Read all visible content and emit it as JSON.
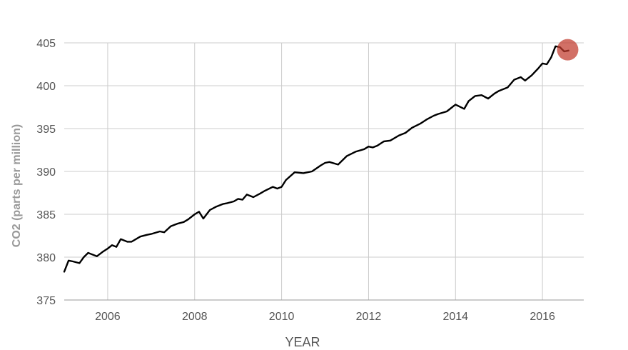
{
  "chart_data": {
    "type": "line",
    "title": "",
    "xlabel": "YEAR",
    "ylabel": "CO2 (parts per million)",
    "xlim": [
      2005.0,
      2016.95
    ],
    "ylim": [
      375,
      405
    ],
    "x_ticks": [
      2006,
      2008,
      2010,
      2012,
      2014,
      2016
    ],
    "y_ticks": [
      375,
      380,
      385,
      390,
      395,
      400,
      405
    ],
    "grid": true,
    "legend": "none",
    "colors": {
      "line": "#000000",
      "grid": "#cccccc",
      "highlight": "#c0392b"
    },
    "highlight_point": {
      "x": 2016.58,
      "y": 404.2
    },
    "series": [
      {
        "x": [
          2005.0,
          2005.1,
          2005.2,
          2005.35,
          2005.45,
          2005.55,
          2005.75,
          2005.88,
          2006.0,
          2006.1,
          2006.2,
          2006.3,
          2006.45,
          2006.55,
          2006.75,
          2006.9,
          2007.0,
          2007.2,
          2007.3,
          2007.45,
          2007.6,
          2007.75,
          2007.85,
          2008.0,
          2008.1,
          2008.2,
          2008.35,
          2008.5,
          2008.65,
          2008.75,
          2008.9,
          2009.0,
          2009.1,
          2009.2,
          2009.35,
          2009.5,
          2009.6,
          2009.8,
          2009.9,
          2010.0,
          2010.1,
          2010.3,
          2010.5,
          2010.7,
          2010.9,
          2011.0,
          2011.1,
          2011.3,
          2011.5,
          2011.7,
          2011.9,
          2012.0,
          2012.1,
          2012.2,
          2012.35,
          2012.5,
          2012.7,
          2012.85,
          2013.0,
          2013.2,
          2013.35,
          2013.5,
          2013.6,
          2013.8,
          2014.0,
          2014.2,
          2014.3,
          2014.45,
          2014.6,
          2014.75,
          2014.9,
          2015.0,
          2015.2,
          2015.35,
          2015.5,
          2015.6,
          2015.75,
          2015.9,
          2016.0,
          2016.1,
          2016.2,
          2016.3,
          2016.4,
          2016.5,
          2016.6
        ],
        "values": [
          378.3,
          379.6,
          379.5,
          379.3,
          380.0,
          380.5,
          380.1,
          380.6,
          381.0,
          381.4,
          381.2,
          382.1,
          381.8,
          381.8,
          382.4,
          382.6,
          382.7,
          383.0,
          382.9,
          383.6,
          383.9,
          384.1,
          384.4,
          385.0,
          385.3,
          384.5,
          385.5,
          385.9,
          386.2,
          386.3,
          386.5,
          386.8,
          386.7,
          387.3,
          387.0,
          387.4,
          387.7,
          388.2,
          388.0,
          388.2,
          389.0,
          389.9,
          389.8,
          390.0,
          390.7,
          391.0,
          391.1,
          390.8,
          391.8,
          392.3,
          392.6,
          392.9,
          392.8,
          393.0,
          393.5,
          393.6,
          394.2,
          394.5,
          395.1,
          395.6,
          396.1,
          396.5,
          396.7,
          397.0,
          397.8,
          397.3,
          398.2,
          398.8,
          398.9,
          398.5,
          399.1,
          399.4,
          399.8,
          400.7,
          401.0,
          400.6,
          401.2,
          402.0,
          402.6,
          402.5,
          403.3,
          404.6,
          404.5,
          404.0,
          404.1
        ]
      }
    ]
  }
}
